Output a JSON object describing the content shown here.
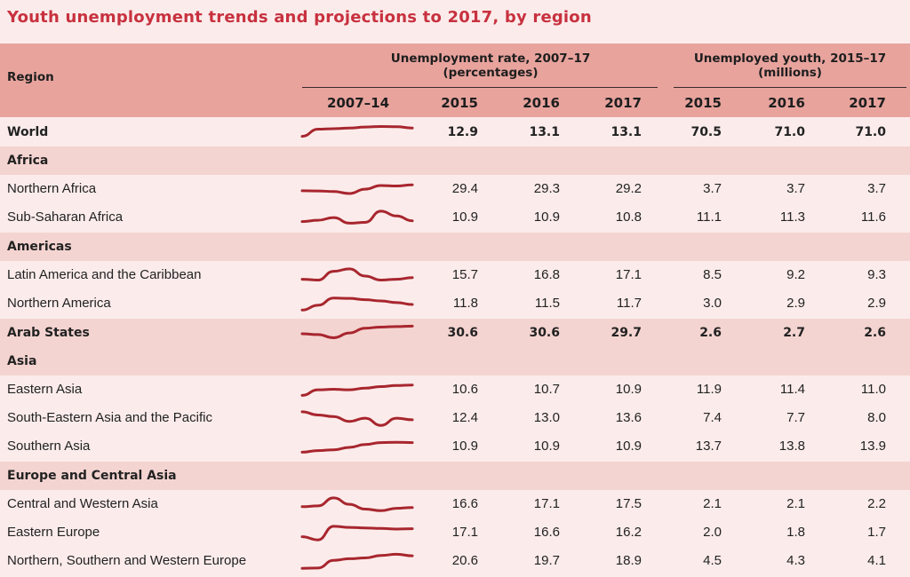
{
  "title": "Youth unemployment trends and projections to 2017, by region",
  "header": {
    "region": "Region",
    "rate_group_line1": "Unemployment rate, 2007–17",
    "rate_group_line2": "(percentages)",
    "youth_group_line1": "Unemployed youth, 2015–17",
    "youth_group_line2": "(millions)",
    "trend_col": "2007–14",
    "years": [
      "2015",
      "2016",
      "2017"
    ]
  },
  "colors": {
    "title": "#c8313f",
    "header_bg": "#e8a39d",
    "band_bg": "#f4d4d1",
    "page_bg": "#fbeceb",
    "sparkline": "#a8262e"
  },
  "rows": [
    {
      "kind": "bold",
      "band": false,
      "name": "World",
      "trend": [
        0.3,
        0.75,
        0.78,
        0.82,
        0.88,
        0.92,
        0.9,
        0.82
      ],
      "rate": [
        "12.9",
        "13.1",
        "13.1"
      ],
      "youth": [
        "70.5",
        "71.0",
        "71.0"
      ]
    },
    {
      "kind": "heading",
      "band": true,
      "name": "Africa"
    },
    {
      "kind": "normal",
      "band": false,
      "name": "Northern Africa",
      "trend": [
        0.45,
        0.44,
        0.4,
        0.28,
        0.55,
        0.78,
        0.75,
        0.82
      ],
      "rate": [
        "29.4",
        "29.3",
        "29.2"
      ],
      "youth": [
        "3.7",
        "3.7",
        "3.7"
      ]
    },
    {
      "kind": "normal",
      "band": false,
      "name": "Sub-Saharan Africa",
      "trend": [
        0.3,
        0.38,
        0.55,
        0.2,
        0.25,
        0.95,
        0.65,
        0.35
      ],
      "rate": [
        "10.9",
        "10.9",
        "10.8"
      ],
      "youth": [
        "11.1",
        "11.3",
        "11.6"
      ]
    },
    {
      "kind": "heading",
      "band": true,
      "name": "Americas"
    },
    {
      "kind": "normal",
      "band": false,
      "name": "Latin America and the Caribbean",
      "trend": [
        0.3,
        0.25,
        0.8,
        0.95,
        0.5,
        0.25,
        0.3,
        0.4
      ],
      "rate": [
        "15.7",
        "16.8",
        "17.1"
      ],
      "youth": [
        "8.5",
        "9.2",
        "9.3"
      ]
    },
    {
      "kind": "normal",
      "band": false,
      "name": "Northern America",
      "trend": [
        0.15,
        0.45,
        0.9,
        0.88,
        0.8,
        0.72,
        0.62,
        0.5
      ],
      "rate": [
        "11.8",
        "11.5",
        "11.7"
      ],
      "youth": [
        "3.0",
        "2.9",
        "2.9"
      ]
    },
    {
      "kind": "bold",
      "band": true,
      "name": "Arab States",
      "trend": [
        0.5,
        0.45,
        0.25,
        0.55,
        0.85,
        0.92,
        0.95,
        0.98
      ],
      "rate": [
        "30.6",
        "30.6",
        "29.7"
      ],
      "youth": [
        "2.6",
        "2.7",
        "2.6"
      ]
    },
    {
      "kind": "heading",
      "band": true,
      "name": "Asia"
    },
    {
      "kind": "normal",
      "band": false,
      "name": "Eastern Asia",
      "trend": [
        0.2,
        0.55,
        0.58,
        0.55,
        0.65,
        0.75,
        0.82,
        0.85
      ],
      "rate": [
        "10.6",
        "10.7",
        "10.9"
      ],
      "youth": [
        "11.9",
        "11.4",
        "11.0"
      ]
    },
    {
      "kind": "normal",
      "band": false,
      "name": "South-Eastern Asia and the Pacific",
      "trend": [
        0.95,
        0.75,
        0.65,
        0.35,
        0.55,
        0.1,
        0.55,
        0.45
      ],
      "rate": [
        "12.4",
        "13.0",
        "13.6"
      ],
      "youth": [
        "7.4",
        "7.7",
        "8.0"
      ]
    },
    {
      "kind": "normal",
      "band": false,
      "name": "Southern Asia",
      "trend": [
        0.2,
        0.3,
        0.35,
        0.5,
        0.68,
        0.8,
        0.82,
        0.8
      ],
      "rate": [
        "10.9",
        "10.9",
        "10.9"
      ],
      "youth": [
        "13.7",
        "13.8",
        "13.9"
      ]
    },
    {
      "kind": "heading",
      "band": true,
      "name": "Europe and Central Asia"
    },
    {
      "kind": "normal",
      "band": false,
      "name": "Central and Western Asia",
      "trend": [
        0.4,
        0.45,
        0.95,
        0.55,
        0.25,
        0.15,
        0.3,
        0.35
      ],
      "rate": [
        "16.6",
        "17.1",
        "17.5"
      ],
      "youth": [
        "2.1",
        "2.1",
        "2.2"
      ]
    },
    {
      "kind": "normal",
      "band": false,
      "name": "Eastern Europe",
      "trend": [
        0.3,
        0.1,
        0.95,
        0.88,
        0.85,
        0.82,
        0.78,
        0.8
      ],
      "rate": [
        "17.1",
        "16.6",
        "16.2"
      ],
      "youth": [
        "2.0",
        "1.8",
        "1.7"
      ]
    },
    {
      "kind": "normal",
      "band": false,
      "name": "Northern, Southern and Western Europe",
      "trend": [
        0.1,
        0.12,
        0.6,
        0.7,
        0.75,
        0.9,
        0.98,
        0.88
      ],
      "rate": [
        "20.6",
        "19.7",
        "18.9"
      ],
      "youth": [
        "4.5",
        "4.3",
        "4.1"
      ]
    }
  ]
}
